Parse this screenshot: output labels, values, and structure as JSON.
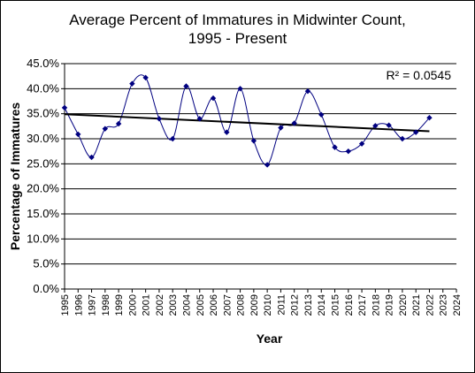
{
  "chart_data": {
    "type": "line",
    "title_line1": "Average Percent of Immatures  in Midwinter Count,",
    "title_line2": "1995 - Present",
    "xlabel": "Year",
    "ylabel": "Percentage of Immatures",
    "ylim": [
      0,
      45
    ],
    "y_tick_values": [
      0,
      5,
      10,
      15,
      20,
      25,
      30,
      35,
      40,
      45
    ],
    "y_tick_labels": [
      "0.0%",
      "5.0%",
      "10.0%",
      "15.0%",
      "20.0%",
      "25.0%",
      "30.0%",
      "35.0%",
      "40.0%",
      "45.0%"
    ],
    "x_ticks": [
      "1995",
      "1996",
      "1997",
      "1998",
      "1999",
      "2000",
      "2001",
      "2002",
      "2003",
      "2004",
      "2005",
      "2006",
      "2007",
      "2008",
      "2009",
      "2010",
      "2011",
      "2012",
      "2013",
      "2014",
      "2015",
      "2016",
      "2017",
      "2018",
      "2019",
      "2020",
      "2021",
      "2022",
      "2023",
      "2024"
    ],
    "x": [
      1995,
      1996,
      1997,
      1998,
      1999,
      2000,
      2001,
      2002,
      2003,
      2004,
      2005,
      2006,
      2007,
      2008,
      2009,
      2010,
      2011,
      2012,
      2013,
      2014,
      2015,
      2016,
      2017,
      2018,
      2019,
      2020,
      2021,
      2022
    ],
    "values": [
      36.2,
      30.9,
      26.3,
      32.0,
      33.0,
      41.0,
      42.2,
      34.0,
      30.0,
      40.5,
      34.0,
      38.1,
      31.3,
      40.0,
      29.6,
      24.8,
      32.2,
      33.1,
      39.5,
      34.8,
      28.3,
      27.5,
      29.0,
      32.6,
      32.7,
      30.0,
      31.3,
      34.2
    ],
    "trendline": {
      "x": [
        1995,
        2022
      ],
      "y": [
        34.9,
        31.5
      ]
    },
    "r_squared_label": "R² = 0.0545",
    "grid": true,
    "legend": "none",
    "colors": {
      "series": "#000080",
      "trendline": "#000000",
      "grid": "#000000"
    }
  }
}
